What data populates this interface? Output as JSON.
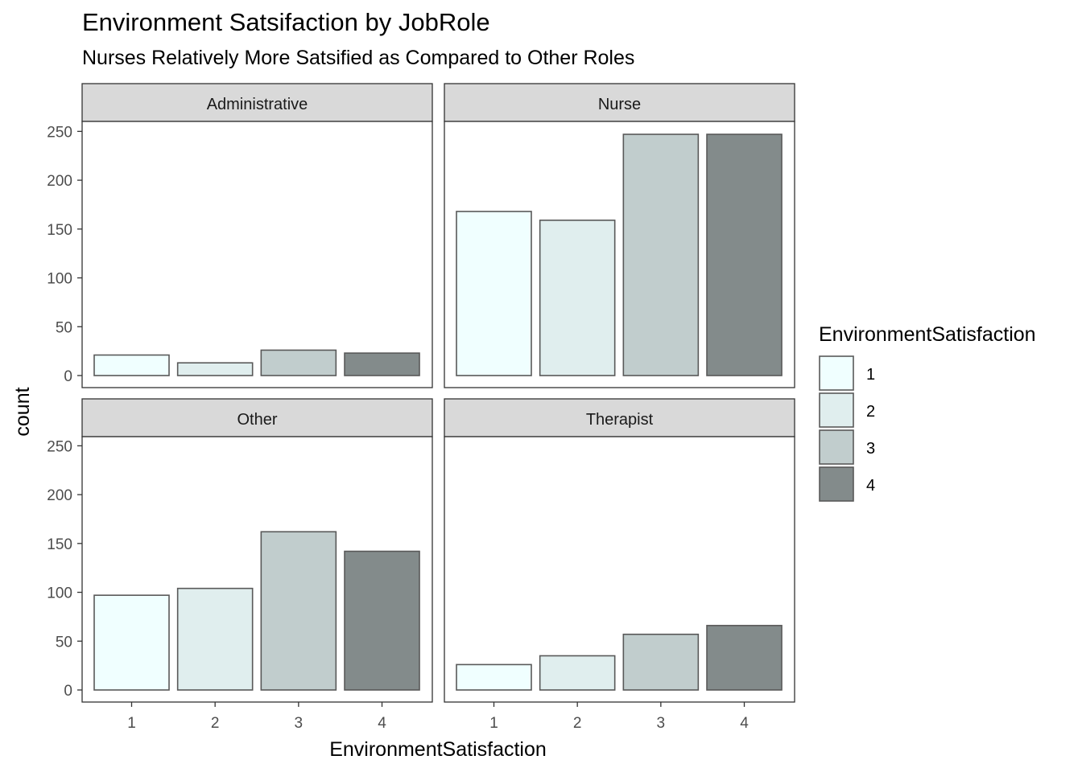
{
  "chart_data": {
    "type": "bar",
    "title": "Environment Satsifaction by JobRole",
    "subtitle": "Nurses Relatively More Satsified as Compared to Other Roles",
    "xlabel": "EnvironmentSatisfaction",
    "ylabel": "count",
    "categories": [
      "1",
      "2",
      "3",
      "4"
    ],
    "yticks": [
      0,
      50,
      100,
      150,
      200,
      250
    ],
    "ylim": [
      0,
      265
    ],
    "colors": [
      "#F0FFFF",
      "#E0EEEE",
      "#C1CDCD",
      "#838B8B"
    ],
    "legend": {
      "title": "EnvironmentSatisfaction",
      "labels": [
        "1",
        "2",
        "3",
        "4"
      ],
      "position": "right"
    },
    "facets": [
      {
        "name": "Administrative",
        "values": [
          21,
          13,
          26,
          23
        ]
      },
      {
        "name": "Nurse",
        "values": [
          168,
          159,
          247,
          247
        ]
      },
      {
        "name": "Other",
        "values": [
          97,
          104,
          162,
          142
        ]
      },
      {
        "name": "Therapist",
        "values": [
          26,
          35,
          57,
          66
        ]
      }
    ]
  }
}
